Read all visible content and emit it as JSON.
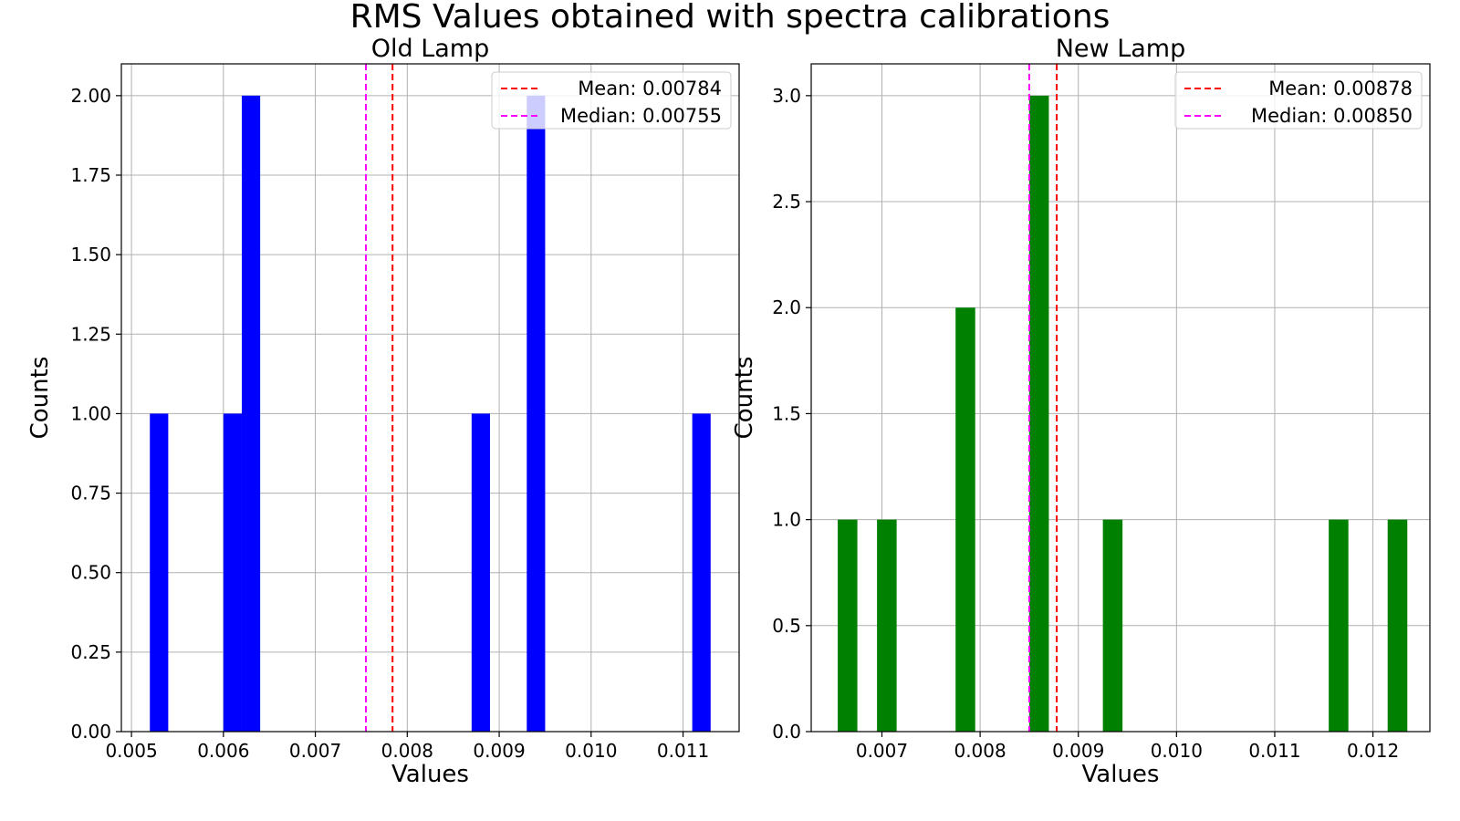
{
  "figure": {
    "suptitle": "RMS Values obtained with spectra calibrations"
  },
  "chart_data": [
    {
      "type": "histogram",
      "title": "Old Lamp",
      "xlabel": "Values",
      "ylabel": "Counts",
      "xlim": [
        0.00489,
        0.01161
      ],
      "ylim": [
        0,
        2.1
      ],
      "grid": true,
      "bar_color": "#0000ff",
      "bin_width": 0.0002,
      "x_ticks": [
        "0.005",
        "0.006",
        "0.007",
        "0.008",
        "0.009",
        "0.010",
        "0.011"
      ],
      "x_tick_values": [
        0.005,
        0.006,
        0.007,
        0.008,
        0.009,
        0.01,
        0.011
      ],
      "y_ticks": [
        "0.00",
        "0.25",
        "0.50",
        "0.75",
        "1.00",
        "1.25",
        "1.50",
        "1.75",
        "2.00"
      ],
      "y_tick_values": [
        0,
        0.25,
        0.5,
        0.75,
        1.0,
        1.25,
        1.5,
        1.75,
        2.0
      ],
      "bars": [
        {
          "x0": 0.0052,
          "x1": 0.0054,
          "count": 1
        },
        {
          "x0": 0.006,
          "x1": 0.0062,
          "count": 1
        },
        {
          "x0": 0.0062,
          "x1": 0.0064,
          "count": 2
        },
        {
          "x0": 0.0087,
          "x1": 0.0089,
          "count": 1
        },
        {
          "x0": 0.0093,
          "x1": 0.0095,
          "count": 2
        },
        {
          "x0": 0.0111,
          "x1": 0.0113,
          "count": 1
        }
      ],
      "lines": [
        {
          "name": "mean",
          "value": 0.00784,
          "color": "#ff0000",
          "label": "Mean: 0.00784"
        },
        {
          "name": "median",
          "value": 0.00755,
          "color": "#ff00ff",
          "label": "Median: 0.00755"
        }
      ],
      "legend_position": "upper right"
    },
    {
      "type": "histogram",
      "title": "New Lamp",
      "xlabel": "Values",
      "ylabel": "Counts",
      "xlim": [
        0.00628,
        0.01258
      ],
      "ylim": [
        0,
        3.15
      ],
      "grid": true,
      "bar_color": "#008000",
      "bin_width": 0.0002,
      "x_ticks": [
        "0.007",
        "0.008",
        "0.009",
        "0.010",
        "0.011",
        "0.012"
      ],
      "x_tick_values": [
        0.007,
        0.008,
        0.009,
        0.01,
        0.011,
        0.012
      ],
      "y_ticks": [
        "0.0",
        "0.5",
        "1.0",
        "1.5",
        "2.0",
        "2.5",
        "3.0"
      ],
      "y_tick_values": [
        0,
        0.5,
        1.0,
        1.5,
        2.0,
        2.5,
        3.0
      ],
      "bars": [
        {
          "x0": 0.00655,
          "x1": 0.00675,
          "count": 1
        },
        {
          "x0": 0.00695,
          "x1": 0.00715,
          "count": 1
        },
        {
          "x0": 0.00775,
          "x1": 0.00795,
          "count": 2
        },
        {
          "x0": 0.0085,
          "x1": 0.0087,
          "count": 3
        },
        {
          "x0": 0.00925,
          "x1": 0.00945,
          "count": 1
        },
        {
          "x0": 0.01155,
          "x1": 0.01175,
          "count": 1
        },
        {
          "x0": 0.01215,
          "x1": 0.01235,
          "count": 1
        }
      ],
      "lines": [
        {
          "name": "mean",
          "value": 0.00878,
          "color": "#ff0000",
          "label": "Mean: 0.00878"
        },
        {
          "name": "median",
          "value": 0.0085,
          "color": "#ff00ff",
          "label": "Median: 0.00850"
        }
      ],
      "legend_position": "upper right"
    }
  ]
}
